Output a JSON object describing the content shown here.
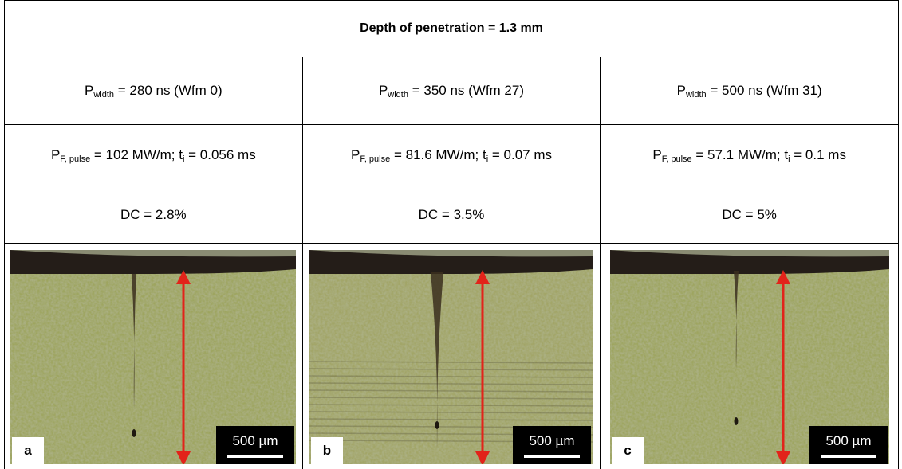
{
  "table": {
    "title": "Depth of penetration = 1.3 mm",
    "columns": [
      {
        "pulse_width": [
          "P",
          "width",
          " = 280 ns (Wfm 0)"
        ],
        "power": [
          "P",
          "F, pulse",
          " = 102 MW/m; t",
          "i",
          " = 0.056 ms"
        ],
        "duty_cycle": "DC = 2.8%",
        "panel_label": "a",
        "scale_bar": "500 µm"
      },
      {
        "pulse_width": [
          "P",
          "width",
          " = 350 ns (Wfm 27)"
        ],
        "power": [
          "P",
          "F, pulse",
          " = 81.6 MW/m; t",
          "i",
          " = 0.07 ms"
        ],
        "duty_cycle": "DC = 3.5%",
        "panel_label": "b",
        "scale_bar": "500 µm"
      },
      {
        "pulse_width": [
          "P",
          "width",
          " = 500 ns (Wfm 31)"
        ],
        "power": [
          "P",
          "F, pulse",
          " = 57.1 MW/m; t",
          "i",
          " = 0.1 ms"
        ],
        "duty_cycle": "DC = 5%",
        "panel_label": "c",
        "scale_bar": "500 µm"
      }
    ]
  }
}
